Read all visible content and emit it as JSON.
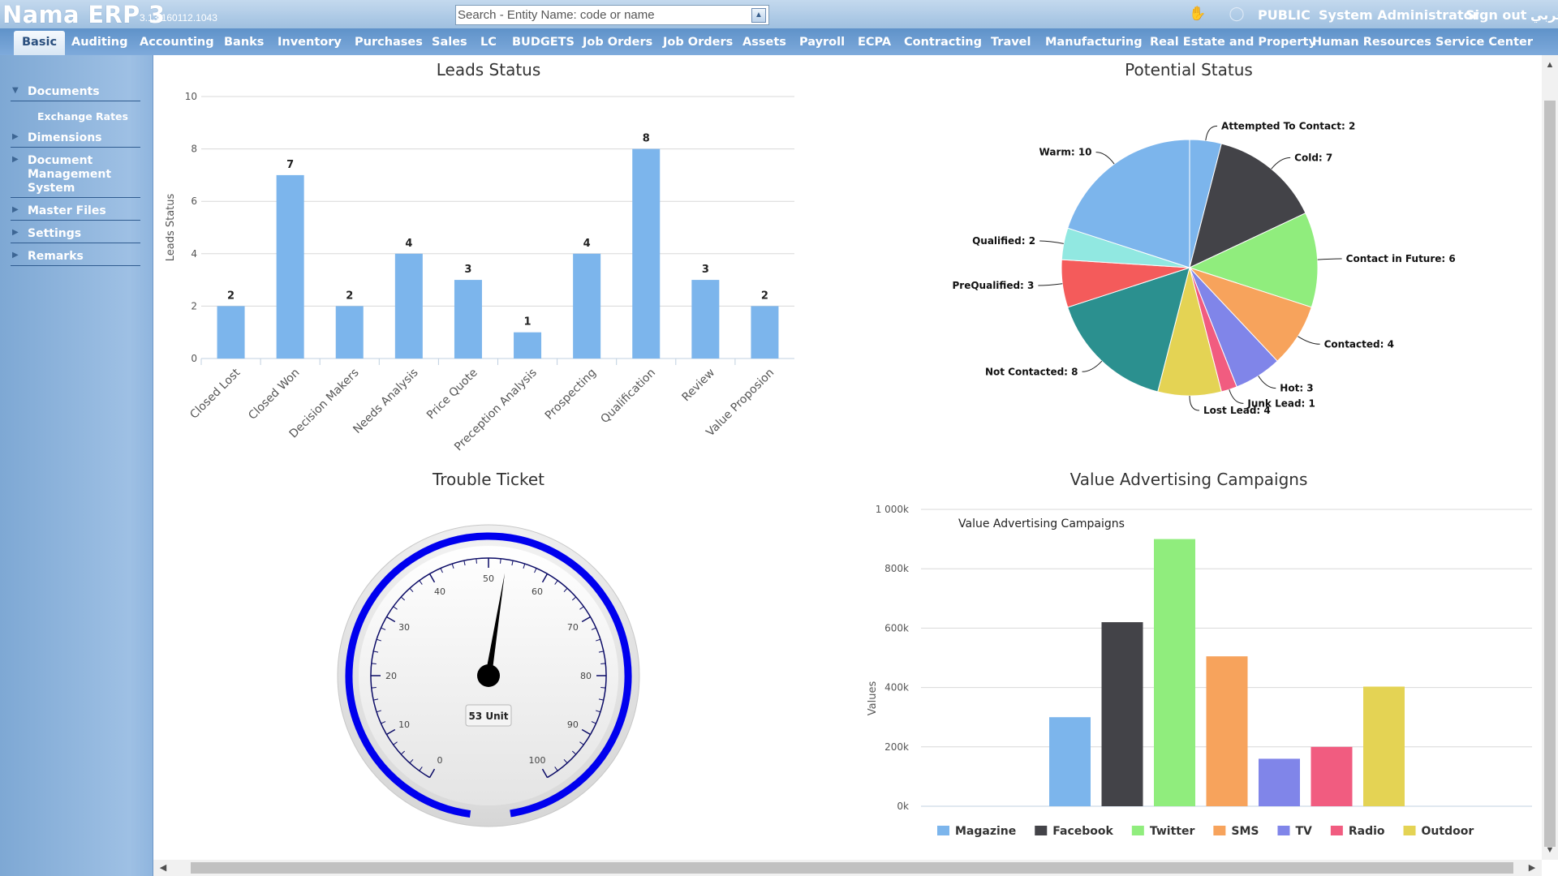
{
  "header": {
    "app_title": "Nama ERP 3",
    "version": "3.13.160112.1043",
    "search_placeholder": "Search - Entity Name: code or name",
    "public_label": "PUBLIC",
    "user_name": "System Administrator",
    "sign_out": "Sign out",
    "language_label": "عربي",
    "icons": [
      "thumbs-up-icon",
      "help-bubble-icon"
    ]
  },
  "menu": {
    "active": "Basic",
    "items": [
      "Basic",
      "Auditing",
      "Accounting",
      "Banks",
      "Inventory",
      "Purchases",
      "Sales",
      "LC",
      "BUDGETS",
      "Job Orders",
      "Job Orders",
      "Assets",
      "Payroll",
      "ECPA",
      "Contracting",
      "Travel",
      "Manufacturing",
      "Real Estate and Property",
      "Human Resources",
      "Service Center"
    ]
  },
  "sidebar": {
    "groups": [
      {
        "label": "Documents",
        "expanded": true,
        "children": [
          "Exchange Rates"
        ]
      },
      {
        "label": "Dimensions",
        "expanded": false
      },
      {
        "label": "Document Management System",
        "expanded": false
      },
      {
        "label": "Master Files",
        "expanded": false
      },
      {
        "label": "Settings",
        "expanded": false
      },
      {
        "label": "Remarks",
        "expanded": false
      }
    ]
  },
  "chart_data": [
    {
      "id": "leads",
      "type": "bar",
      "title": "Leads Status",
      "ylabel": "Leads Status",
      "xlabel": "",
      "ylim": [
        0,
        10
      ],
      "yticks": [
        0,
        2,
        4,
        6,
        8,
        10
      ],
      "categories": [
        "Closed Lost",
        "Closed Won",
        "Decision Makers",
        "Needs Analysis",
        "Price Quote",
        "Preception Analysis",
        "Prospecting",
        "Qualification",
        "Review",
        "Value Proposion"
      ],
      "values": [
        2,
        7,
        2,
        4,
        3,
        1,
        4,
        8,
        3,
        2
      ],
      "color": "#7cb5ec",
      "grid": true
    },
    {
      "id": "potential",
      "type": "pie",
      "title": "Potential Status",
      "slices": [
        {
          "label": "Attempted To Contact",
          "value": 2,
          "color": "#7cb5ec"
        },
        {
          "label": "Cold",
          "value": 7,
          "color": "#434348"
        },
        {
          "label": "Contact in Future",
          "value": 6,
          "color": "#90ed7d"
        },
        {
          "label": "Contacted",
          "value": 4,
          "color": "#f7a35c"
        },
        {
          "label": "Hot",
          "value": 3,
          "color": "#8085e9"
        },
        {
          "label": "Junk Lead",
          "value": 1,
          "color": "#f15c80"
        },
        {
          "label": "Lost Lead",
          "value": 4,
          "color": "#e4d354"
        },
        {
          "label": "Not Contacted",
          "value": 8,
          "color": "#2b908f"
        },
        {
          "label": "PreQualified",
          "value": 3,
          "color": "#f45b5b"
        },
        {
          "label": "Qualified",
          "value": 2,
          "color": "#91e8e1"
        },
        {
          "label": "Warm",
          "value": 10,
          "color": "#7cb5ec"
        }
      ]
    },
    {
      "id": "trouble",
      "type": "gauge",
      "title": "Trouble Ticket",
      "min": 0,
      "max": 100,
      "value": 53,
      "unit_label": "53 Unit",
      "tick_labels": [
        0,
        10,
        20,
        30,
        40,
        50,
        60,
        70,
        80,
        90,
        100
      ],
      "band_color": "#0000ee"
    },
    {
      "id": "advertising",
      "type": "bar",
      "title": "Value Advertising Campaigns",
      "subtitle": "Value Advertising Campaigns",
      "ylabel": "Values",
      "xlabel": "",
      "ylim": [
        0,
        1000000
      ],
      "ytick_labels": [
        "0k",
        "200k",
        "400k",
        "600k",
        "800k",
        "1 000k"
      ],
      "series": [
        {
          "name": "Magazine",
          "value": 300000,
          "color": "#7cb5ec"
        },
        {
          "name": "Facebook",
          "value": 620000,
          "color": "#434348"
        },
        {
          "name": "Twitter",
          "value": 900000,
          "color": "#90ed7d"
        },
        {
          "name": "SMS",
          "value": 505000,
          "color": "#f7a35c"
        },
        {
          "name": "TV",
          "value": 160000,
          "color": "#8085e9"
        },
        {
          "name": "Radio",
          "value": 200000,
          "color": "#f15c80"
        },
        {
          "name": "Outdoor",
          "value": 403000,
          "color": "#e4d354"
        }
      ],
      "legend": "bottom",
      "grid": true
    }
  ]
}
